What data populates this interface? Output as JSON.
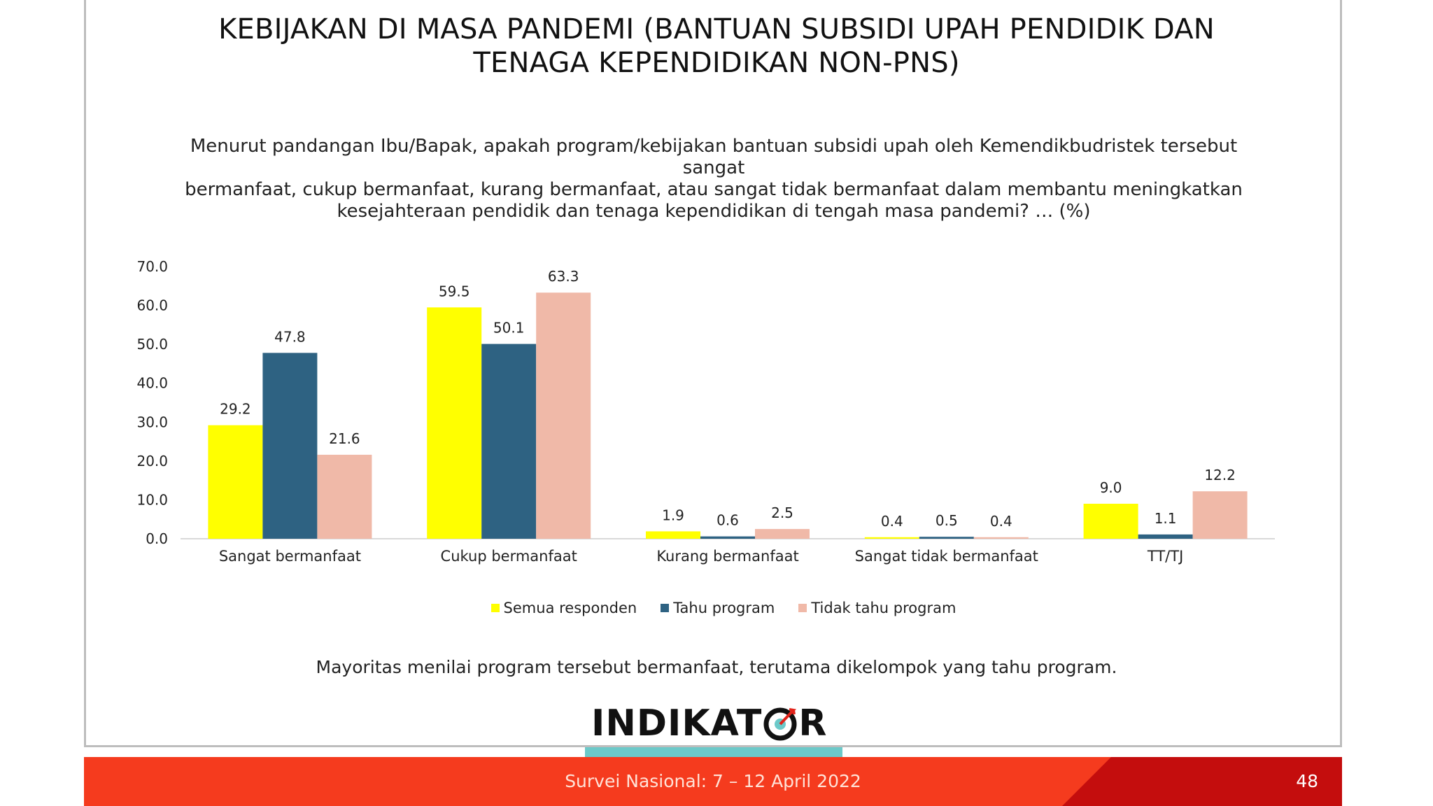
{
  "title_line1": "KEBIJAKAN DI MASA PANDEMI (BANTUAN SUBSIDI UPAH PENDIDIK DAN",
  "title_line2": "TENAGA KEPENDIDIKAN NON-PNS)",
  "question_line1": "Menurut pandangan Ibu/Bapak, apakah program/kebijakan bantuan subsidi upah oleh Kemendikbudristek tersebut sangat",
  "question_line2": "bermanfaat, cukup bermanfaat, kurang bermanfaat, atau sangat tidak bermanfaat dalam membantu meningkatkan",
  "question_line3": "kesejahteraan pendidik dan tenaga kependidikan di tengah masa pandemi? … (%)",
  "note": "Mayoritas menilai program tersebut bermanfaat, terutama dikelompok yang tahu program.",
  "logo": {
    "left": "INDIKAT",
    "right": "R"
  },
  "footer_text": "Survei Nasional: 7 – 12 April 2022",
  "page_number": "48",
  "chart_data": {
    "type": "bar",
    "categories": [
      "Sangat bermanfaat",
      "Cukup bermanfaat",
      "Kurang bermanfaat",
      "Sangat tidak bermanfaat",
      "TT/TJ"
    ],
    "series": [
      {
        "name": "Semua responden",
        "color": "#ffff00",
        "values": [
          29.2,
          59.5,
          1.9,
          0.4,
          9.0
        ]
      },
      {
        "name": "Tahu program",
        "color": "#2e6282",
        "values": [
          47.8,
          50.1,
          0.6,
          0.5,
          1.1
        ]
      },
      {
        "name": "Tidak tahu program",
        "color": "#f0b9a8",
        "values": [
          21.6,
          63.3,
          2.5,
          0.4,
          12.2
        ]
      }
    ],
    "yticks": [
      "0.0",
      "10.0",
      "20.0",
      "30.0",
      "40.0",
      "50.0",
      "60.0",
      "70.0"
    ],
    "ylim": [
      0,
      70
    ],
    "legend_position": "bottom",
    "grid": false
  }
}
